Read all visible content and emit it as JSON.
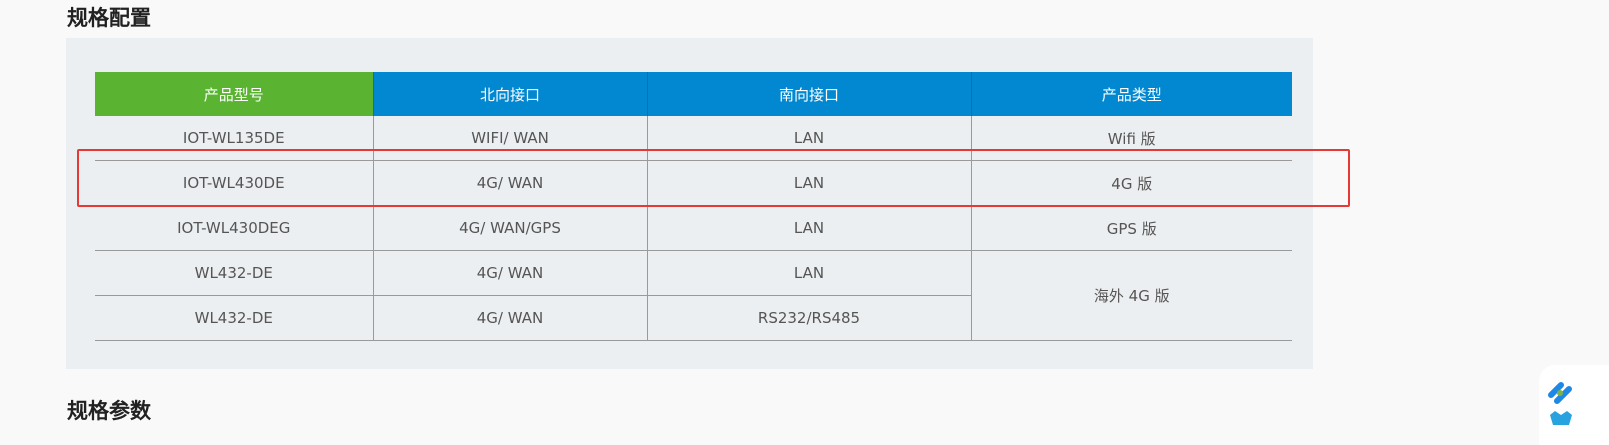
{
  "section_titles": {
    "config": "规格配置",
    "params": "规格参数"
  },
  "table": {
    "headers": [
      "产品型号",
      "北向接口",
      "南向接口",
      "产品类型"
    ],
    "rows": [
      [
        "IOT-WL135DE",
        "WIFI/ WAN",
        "LAN",
        "Wifi 版"
      ],
      [
        "IOT-WL430DE",
        "4G/ WAN",
        "LAN",
        "4G 版"
      ],
      [
        "IOT-WL430DEG",
        "4G/ WAN/GPS",
        "LAN",
        "GPS 版"
      ],
      [
        "WL432-DE",
        "4G/ WAN",
        "LAN",
        "海外 4G 版"
      ],
      [
        "WL432-DE",
        "4G/ WAN",
        "RS232/RS485"
      ]
    ],
    "highlighted_row": 2
  },
  "colors": {
    "header_first": "#5ab432",
    "header": "#0288d1",
    "highlight": "#e53935"
  }
}
